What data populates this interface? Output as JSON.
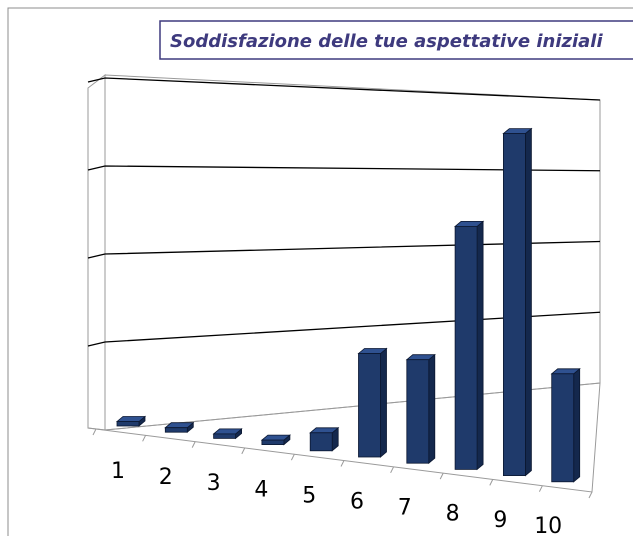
{
  "chart_data": {
    "type": "bar3d",
    "title": "Soddisfazione delle tue aspettative iniziali",
    "categories": [
      "1",
      "2",
      "3",
      "4",
      "5",
      "6",
      "7",
      "8",
      "9",
      "10"
    ],
    "values": [
      0.05,
      0.05,
      0.05,
      0.05,
      0.2,
      1.15,
      1.15,
      2.7,
      3.8,
      1.2
    ],
    "color": "#1f3a6b",
    "gridlines": [
      1,
      2,
      3,
      4
    ],
    "grid": true
  }
}
